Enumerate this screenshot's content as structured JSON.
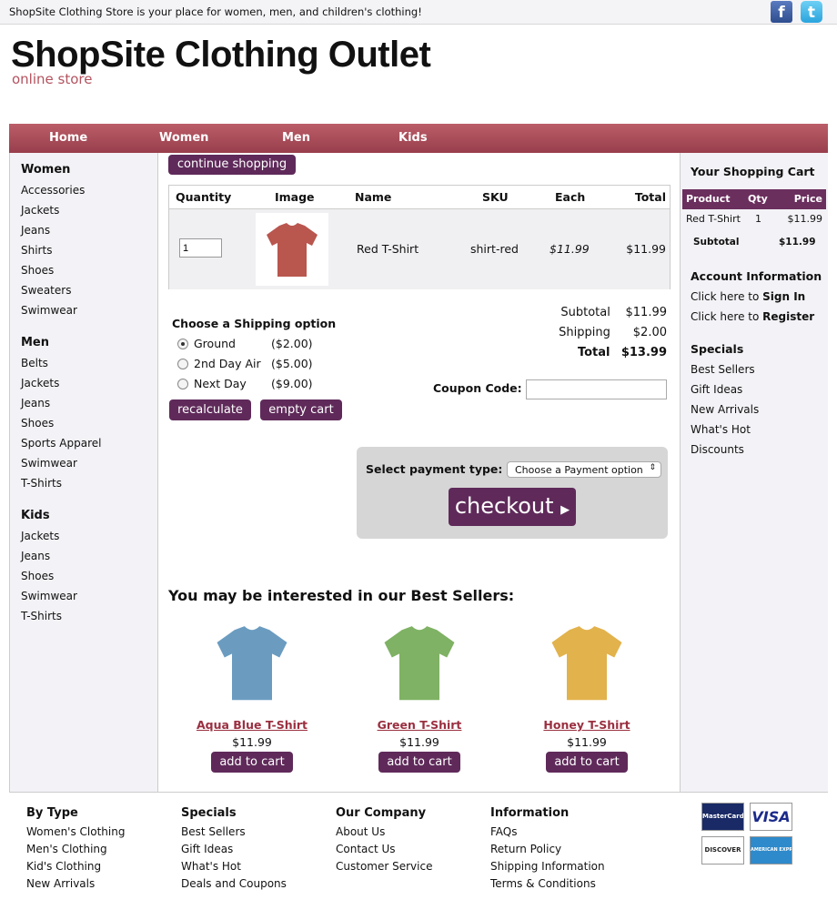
{
  "topbar": {
    "tagline": "ShopSite Clothing Store is your place for women, men, and children's clothing!",
    "facebook": "f",
    "twitter": "t"
  },
  "header": {
    "title": "ShopSite Clothing Outlet",
    "subtitle": "online store"
  },
  "nav": [
    "Home",
    "Women",
    "Men",
    "Kids"
  ],
  "left": {
    "women": {
      "title": "Women",
      "items": [
        "Accessories",
        "Jackets",
        "Jeans",
        "Shirts",
        "Shoes",
        "Sweaters",
        "Swimwear"
      ]
    },
    "men": {
      "title": "Men",
      "items": [
        "Belts",
        "Jackets",
        "Jeans",
        "Shoes",
        "Sports Apparel",
        "Swimwear",
        "T-Shirts"
      ]
    },
    "kids": {
      "title": "Kids",
      "items": [
        "Jackets",
        "Jeans",
        "Shoes",
        "Swimwear",
        "T-Shirts"
      ]
    }
  },
  "cart": {
    "continue": "continue shopping",
    "headers": [
      "Quantity",
      "Image",
      "Name",
      "SKU",
      "Each",
      "Total"
    ],
    "row": {
      "qty": "1",
      "name": "Red T-Shirt",
      "sku": "shirt-red",
      "each": "$11.99",
      "total": "$11.99",
      "color": "#b9564e"
    }
  },
  "shipping": {
    "title": "Choose a Shipping option",
    "options": [
      {
        "label": "Ground",
        "price": "($2.00)",
        "selected": true
      },
      {
        "label": "2nd Day Air",
        "price": "($5.00)"
      },
      {
        "label": "Next Day",
        "price": "($9.00)"
      }
    ],
    "recalculate": "recalculate",
    "empty": "empty cart"
  },
  "totals": {
    "subtotal_label": "Subtotal",
    "subtotal": "$11.99",
    "shipping_label": "Shipping",
    "shipping": "$2.00",
    "total_label": "Total",
    "total": "$13.99"
  },
  "coupon": {
    "label": "Coupon Code:",
    "value": ""
  },
  "payment": {
    "label": "Select payment type:",
    "selected": "Choose a Payment option",
    "checkout": "checkout"
  },
  "bestsellers": {
    "title": "You may be interested in our Best Sellers:",
    "add": "add to cart",
    "items": [
      {
        "name": "Aqua Blue T-Shirt",
        "price": "$11.99",
        "color": "#6b9cc0"
      },
      {
        "name": "Green T-Shirt",
        "price": "$11.99",
        "color": "#7fb264"
      },
      {
        "name": "Honey T-Shirt",
        "price": "$11.99",
        "color": "#e2b24c"
      }
    ]
  },
  "right": {
    "cart_title": "Your Shopping Cart",
    "cols": [
      "Product",
      "Qty",
      "Price"
    ],
    "row": [
      "Red T-Shirt",
      "1",
      "$11.99"
    ],
    "subtotal_label": "Subtotal",
    "subtotal": "$11.99",
    "account_title": "Account Information",
    "signin_pre": "Click here to ",
    "signin": "Sign In",
    "register_pre": "Click here to ",
    "register": "Register",
    "specials_title": "Specials",
    "specials": [
      "Best Sellers",
      "Gift Ideas",
      "New Arrivals",
      "What's Hot",
      "Discounts"
    ]
  },
  "footer": [
    {
      "title": "By Type",
      "items": [
        "Women's Clothing",
        "Men's Clothing",
        "Kid's Clothing",
        "New Arrivals"
      ]
    },
    {
      "title": "Specials",
      "items": [
        "Best Sellers",
        "Gift Ideas",
        "What's Hot",
        "Deals and Coupons"
      ]
    },
    {
      "title": "Our Company",
      "items": [
        "About Us",
        "Contact Us",
        "Customer Service"
      ]
    },
    {
      "title": "Information",
      "items": [
        "FAQs",
        "Return Policy",
        "Shipping Information",
        "Terms & Conditions"
      ]
    }
  ],
  "cards": [
    "MasterCard",
    "VISA",
    "DISCOVER",
    "AMERICAN EXPRESS"
  ]
}
